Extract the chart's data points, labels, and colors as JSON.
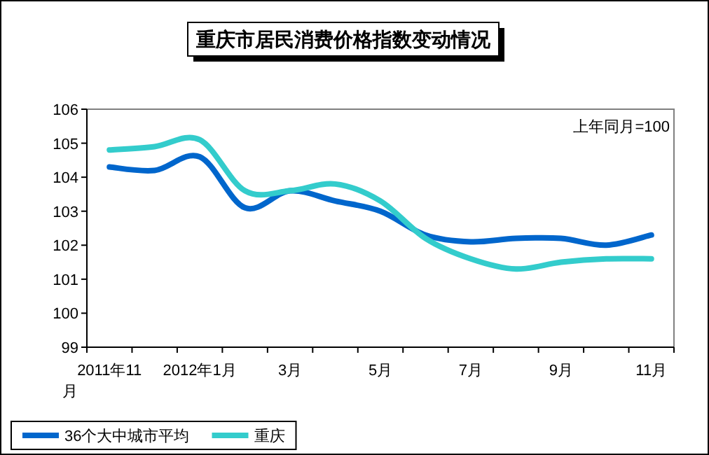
{
  "chart_data": {
    "type": "line",
    "title": "重庆市居民消费价格指数变动情况",
    "annotations": [
      "上年同月=100"
    ],
    "categories": [
      "2011年11月",
      null,
      "2012年1月",
      null,
      "3月",
      null,
      "5月",
      null,
      "7月",
      null,
      "9月",
      null,
      "11月"
    ],
    "ylim": [
      99,
      106
    ],
    "yticks": [
      99,
      100,
      101,
      102,
      103,
      104,
      105,
      106
    ],
    "legend": "bottom left",
    "grid": false,
    "marker": "none",
    "line_style": "solid",
    "series": [
      {
        "name": "36个大中城市平均",
        "color": "#0066cc",
        "values": [
          104.3,
          104.2,
          104.6,
          103.1,
          103.6,
          103.3,
          103.0,
          102.3,
          102.1,
          102.2,
          102.2,
          102.0,
          102.3
        ]
      },
      {
        "name": "重庆",
        "color": "#33cccc",
        "values": [
          104.8,
          104.9,
          105.1,
          103.6,
          103.6,
          103.8,
          103.3,
          102.2,
          101.6,
          101.3,
          101.5,
          101.6,
          101.6
        ]
      }
    ]
  }
}
